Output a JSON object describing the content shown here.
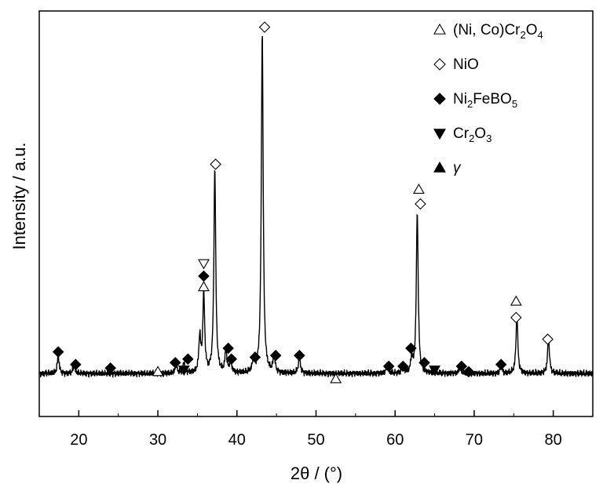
{
  "chart_data": {
    "type": "line",
    "xlabel": "2θ / (°)",
    "ylabel": "Intensity / a.u.",
    "xlim": [
      15,
      85
    ],
    "ylim": [
      0,
      100
    ],
    "x_ticks": [
      20,
      30,
      40,
      50,
      60,
      70,
      80
    ],
    "y_ticks": [],
    "baseline": 3,
    "peaks": [
      {
        "x": 17.4,
        "h": 5
      },
      {
        "x": 19.4,
        "h": 2.5
      },
      {
        "x": 32.3,
        "h": 2.5
      },
      {
        "x": 33.3,
        "h": 3
      },
      {
        "x": 35.3,
        "h": 10
      },
      {
        "x": 35.8,
        "h": 22
      },
      {
        "x": 37.2,
        "h": 57
      },
      {
        "x": 38.6,
        "h": 6
      },
      {
        "x": 39.2,
        "h": 4
      },
      {
        "x": 42.1,
        "h": 4
      },
      {
        "x": 43.2,
        "h": 95
      },
      {
        "x": 44.7,
        "h": 5
      },
      {
        "x": 47.9,
        "h": 5
      },
      {
        "x": 59.0,
        "h": 2.5
      },
      {
        "x": 61.0,
        "h": 2.5
      },
      {
        "x": 62.1,
        "h": 4
      },
      {
        "x": 62.8,
        "h": 45
      },
      {
        "x": 68.2,
        "h": 2
      },
      {
        "x": 73.4,
        "h": 2
      },
      {
        "x": 75.4,
        "h": 16
      },
      {
        "x": 79.4,
        "h": 10
      }
    ],
    "legend": [
      {
        "symbol": "triangle-up-open",
        "parts": [
          {
            "t": "(Ni, Co)Cr"
          },
          {
            "t": "2",
            "sub": true
          },
          {
            "t": "O"
          },
          {
            "t": "4",
            "sub": true
          }
        ]
      },
      {
        "symbol": "diamond-open",
        "parts": [
          {
            "t": "NiO"
          }
        ]
      },
      {
        "symbol": "diamond-filled",
        "parts": [
          {
            "t": "Ni"
          },
          {
            "t": "2",
            "sub": true
          },
          {
            "t": "FeBO"
          },
          {
            "t": "5",
            "sub": true
          }
        ]
      },
      {
        "symbol": "triangle-down-filled",
        "parts": [
          {
            "t": "Cr"
          },
          {
            "t": "2",
            "sub": true
          },
          {
            "t": "O"
          },
          {
            "t": "3",
            "sub": true
          }
        ]
      },
      {
        "symbol": "triangle-up-filled",
        "parts": [
          {
            "t": "γ",
            "italic": true
          }
        ]
      }
    ],
    "markers": [
      {
        "phase": "diamond-filled",
        "x": 17.4,
        "y": 9
      },
      {
        "phase": "diamond-filled",
        "x": 19.6,
        "y": 5.5
      },
      {
        "phase": "diamond-filled",
        "x": 24.0,
        "y": 4.5
      },
      {
        "phase": "triangle-up-open",
        "x": 30.0,
        "y": 3.5
      },
      {
        "phase": "diamond-filled",
        "x": 32.2,
        "y": 6
      },
      {
        "phase": "triangle-down-filled",
        "x": 33.3,
        "y": 4
      },
      {
        "phase": "diamond-filled",
        "x": 33.8,
        "y": 7
      },
      {
        "phase": "triangle-up-open",
        "x": 35.8,
        "y": 27
      },
      {
        "phase": "diamond-filled",
        "x": 35.8,
        "y": 30
      },
      {
        "phase": "triangle-down-open",
        "x": 35.8,
        "y": 33.5
      },
      {
        "phase": "diamond-open",
        "x": 37.3,
        "y": 61
      },
      {
        "phase": "diamond-filled",
        "x": 38.9,
        "y": 10
      },
      {
        "phase": "diamond-filled",
        "x": 39.3,
        "y": 7
      },
      {
        "phase": "diamond-filled",
        "x": 42.3,
        "y": 7.5
      },
      {
        "phase": "diamond-filled",
        "x": 44.9,
        "y": 8
      },
      {
        "phase": "diamond-open",
        "x": 43.5,
        "y": 99
      },
      {
        "phase": "diamond-filled",
        "x": 47.9,
        "y": 8
      },
      {
        "phase": "triangle-up-open",
        "x": 52.5,
        "y": 1.5
      },
      {
        "phase": "diamond-filled",
        "x": 59.2,
        "y": 5
      },
      {
        "phase": "diamond-filled",
        "x": 61.0,
        "y": 5
      },
      {
        "phase": "diamond-filled",
        "x": 62.0,
        "y": 10
      },
      {
        "phase": "diamond-filled",
        "x": 63.7,
        "y": 6
      },
      {
        "phase": "triangle-down-filled",
        "x": 65.0,
        "y": 4
      },
      {
        "phase": "triangle-up-open",
        "x": 63.0,
        "y": 54
      },
      {
        "phase": "diamond-open",
        "x": 63.2,
        "y": 50
      },
      {
        "phase": "diamond-filled",
        "x": 68.4,
        "y": 5
      },
      {
        "phase": "diamond-filled",
        "x": 69.3,
        "y": 3.5
      },
      {
        "phase": "diamond-filled",
        "x": 73.4,
        "y": 5.5
      },
      {
        "phase": "triangle-up-open",
        "x": 75.3,
        "y": 23
      },
      {
        "phase": "diamond-open",
        "x": 75.3,
        "y": 18.5
      },
      {
        "phase": "diamond-open",
        "x": 79.3,
        "y": 12.5
      }
    ]
  }
}
